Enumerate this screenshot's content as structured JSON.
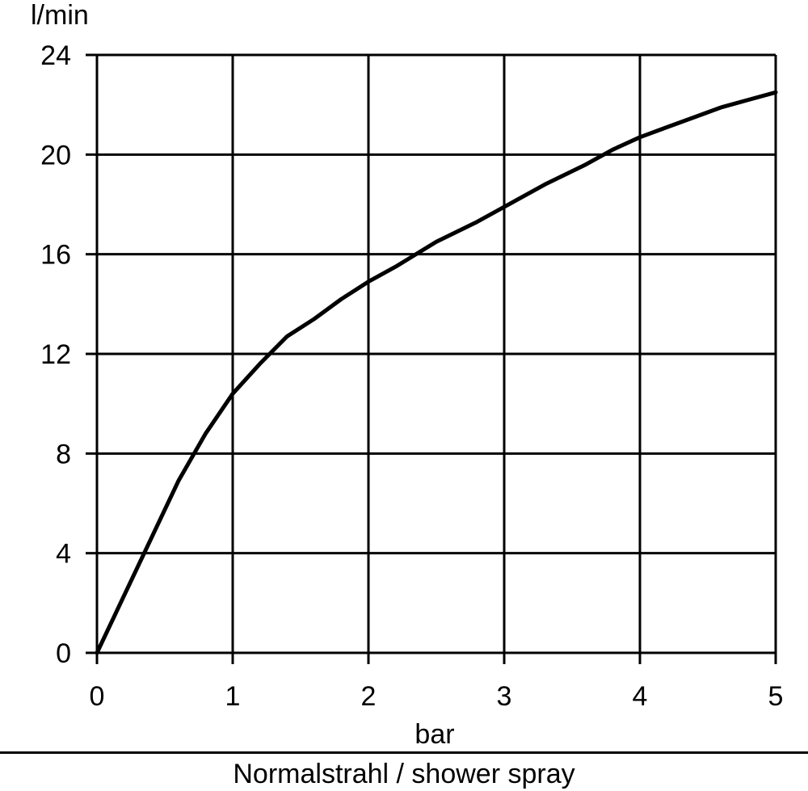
{
  "chart_data": {
    "type": "line",
    "title": "",
    "xlabel": "bar",
    "ylabel": "l/min",
    "xlim": [
      0,
      5
    ],
    "ylim": [
      0,
      24
    ],
    "x_ticks": [
      0,
      1,
      2,
      3,
      4,
      5
    ],
    "y_ticks": [
      0,
      4,
      8,
      12,
      16,
      20,
      24
    ],
    "grid": true,
    "series": [
      {
        "x": [
          0,
          0.2,
          0.4,
          0.6,
          0.8,
          1.0,
          1.2,
          1.4,
          1.6,
          1.8,
          2.0,
          2.2,
          2.5,
          2.8,
          3.0,
          3.3,
          3.6,
          3.8,
          4.0,
          4.2,
          4.4,
          4.6,
          4.8,
          5.0
        ],
        "y": [
          0,
          2.3,
          4.6,
          6.9,
          8.8,
          10.4,
          11.6,
          12.7,
          13.4,
          14.2,
          14.9,
          15.5,
          16.5,
          17.3,
          17.9,
          18.8,
          19.6,
          20.2,
          20.7,
          21.1,
          21.5,
          21.9,
          22.2,
          22.5
        ]
      }
    ],
    "line_color": "#000000",
    "grid_color": "#000000"
  },
  "caption": "Normalstrahl / shower spray"
}
